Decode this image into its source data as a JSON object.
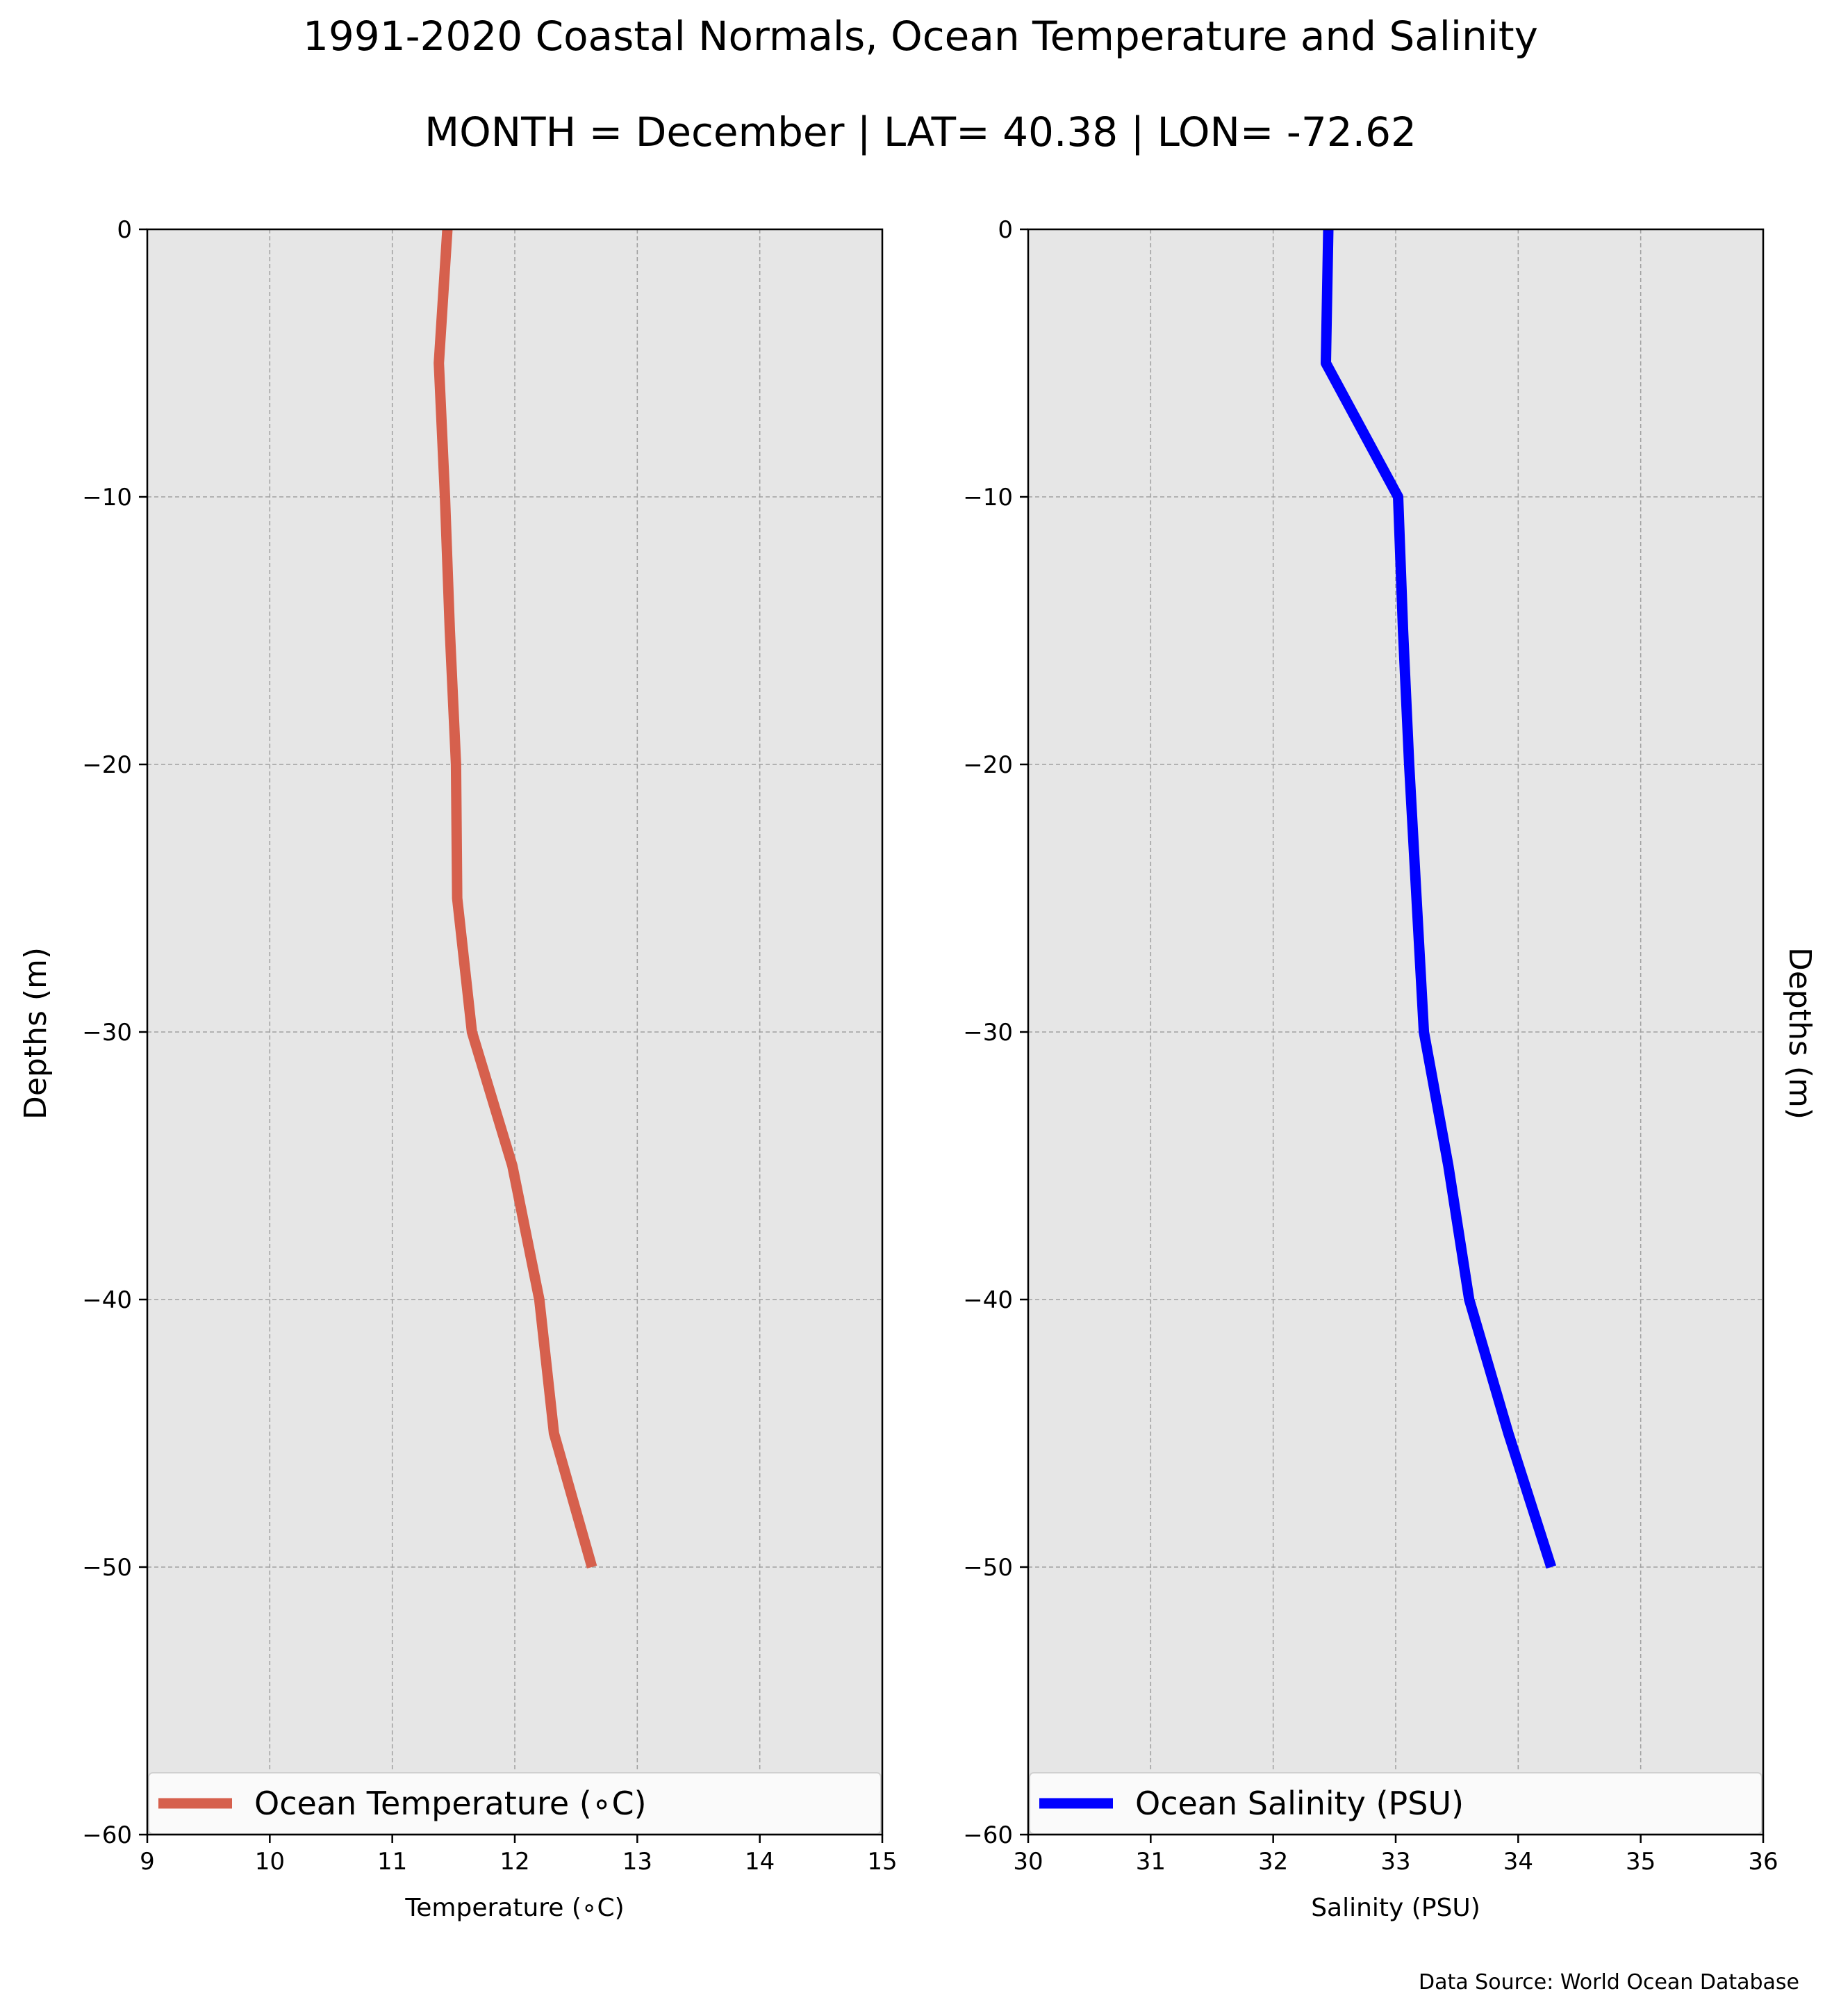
{
  "title": "1991-2020 Coastal Normals, Ocean Temperature and Salinity",
  "subtitle": "MONTH = December | LAT= 40.38 | LON= -72.62",
  "source": "Data Source: World Ocean Database",
  "colors": {
    "temperature": "#d6604d",
    "salinity": "#0000ff",
    "panel_bg": "#e6e6e6",
    "grid": "#a0a0a0"
  },
  "chart_data": [
    {
      "type": "line",
      "xlabel": "Temperature ($^\\circ$C)",
      "xlabel_display": "Temperature (∘C)",
      "ylabel": "Depths (m)",
      "xlim": [
        9,
        15
      ],
      "ylim": [
        -60,
        0
      ],
      "xticks": [
        "9",
        "10",
        "11",
        "12",
        "13",
        "14",
        "15"
      ],
      "yticks": [
        "0",
        "−10",
        "−20",
        "−30",
        "−40",
        "−50",
        "−60"
      ],
      "grid": true,
      "legend_position": "bottom",
      "series": [
        {
          "name": "Ocean Temperature (∘C)",
          "x": [
            11.45,
            11.38,
            11.43,
            11.47,
            11.52,
            11.53,
            11.65,
            11.98,
            12.2,
            12.32,
            12.63
          ],
          "y": [
            0,
            -5,
            -10,
            -15,
            -20,
            -25,
            -30,
            -35,
            -40,
            -45,
            -50
          ]
        }
      ]
    },
    {
      "type": "line",
      "xlabel": "Salinity (PSU)",
      "xlabel_display": "Salinity (PSU)",
      "ylabel": "Depths (m)",
      "xlim": [
        30,
        36
      ],
      "ylim": [
        -60,
        0
      ],
      "xticks": [
        "30",
        "31",
        "32",
        "33",
        "34",
        "35",
        "36"
      ],
      "yticks": [
        "0",
        "−10",
        "−20",
        "−30",
        "−40",
        "−50",
        "−60"
      ],
      "grid": true,
      "legend_position": "bottom",
      "series": [
        {
          "name": "Ocean Salinity (PSU)",
          "x": [
            32.45,
            32.43,
            33.02,
            33.06,
            33.11,
            33.17,
            33.23,
            33.43,
            33.6,
            33.92,
            34.27
          ],
          "y": [
            0,
            -5,
            -10,
            -15,
            -20,
            -25,
            -30,
            -35,
            -40,
            -45,
            -50
          ]
        }
      ]
    }
  ]
}
